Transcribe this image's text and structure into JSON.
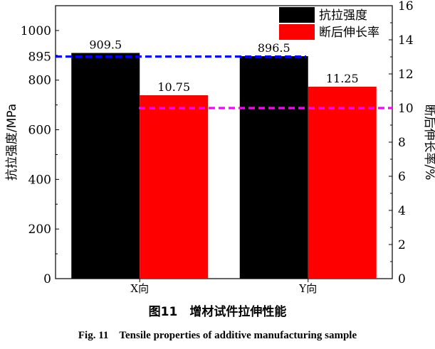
{
  "chart_data": {
    "type": "bar",
    "categories": [
      "X向",
      "Y向"
    ],
    "series": [
      {
        "name": "抗拉强度",
        "axis": "left",
        "values": [
          909.5,
          896.5
        ],
        "labels": [
          "909.5",
          "896.5"
        ],
        "color": "#000000"
      },
      {
        "name": "断后伸长率",
        "axis": "right",
        "values": [
          10.75,
          11.25
        ],
        "labels": [
          "10.75",
          "11.25"
        ],
        "color": "#ff0000"
      }
    ],
    "ylabel_left": "抗拉强度/MPa",
    "ylabel_right": "断后伸长率/%",
    "ylim_left": [
      0,
      1100
    ],
    "ylim_right": [
      0,
      16
    ],
    "yticks_left": [
      0,
      200,
      400,
      600,
      800,
      1000
    ],
    "yticks_right": [
      0,
      2,
      4,
      6,
      8,
      10,
      12,
      14,
      16
    ],
    "reference_lines": [
      {
        "axis": "left",
        "value": 895,
        "label": "895",
        "color": "#0000ff",
        "style": "dashed"
      },
      {
        "axis": "right",
        "value": 10,
        "color": "#ff00ff",
        "style": "dashed"
      }
    ],
    "legend": {
      "placement": "top-right"
    }
  },
  "caption": {
    "cn": "图11　增材试件拉伸性能",
    "en": "Fig. 11　Tensile properties of additive manufacturing sample"
  }
}
